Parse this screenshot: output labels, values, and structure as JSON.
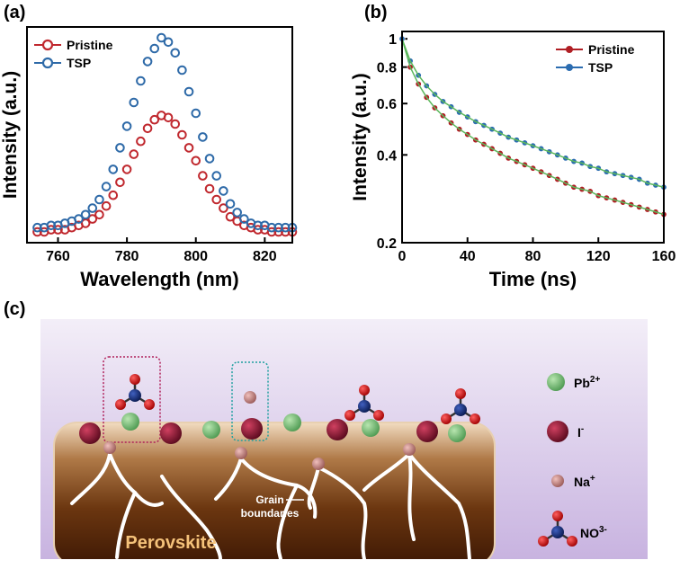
{
  "chart_data": [
    {
      "type": "scatter",
      "panel_label": "(a)",
      "xlabel": "Wavelength (nm)",
      "ylabel": "Intensity (a.u.)",
      "x": [
        754,
        756,
        758,
        760,
        762,
        764,
        766,
        768,
        770,
        772,
        774,
        776,
        778,
        780,
        782,
        784,
        786,
        788,
        790,
        792,
        794,
        796,
        798,
        800,
        802,
        804,
        806,
        808,
        810,
        812,
        814,
        816,
        818,
        820,
        822,
        824,
        826,
        828
      ],
      "series": [
        {
          "name": "Pristine",
          "color": "#c0282e",
          "values": [
            0.05,
            0.05,
            0.06,
            0.06,
            0.06,
            0.07,
            0.08,
            0.09,
            0.11,
            0.13,
            0.17,
            0.22,
            0.28,
            0.34,
            0.41,
            0.47,
            0.53,
            0.57,
            0.59,
            0.58,
            0.55,
            0.5,
            0.44,
            0.38,
            0.31,
            0.25,
            0.2,
            0.16,
            0.12,
            0.1,
            0.08,
            0.07,
            0.06,
            0.06,
            0.05,
            0.05,
            0.05,
            0.05
          ]
        },
        {
          "name": "TSP",
          "color": "#2e6aa8",
          "values": [
            0.07,
            0.07,
            0.08,
            0.08,
            0.09,
            0.1,
            0.11,
            0.13,
            0.16,
            0.2,
            0.26,
            0.34,
            0.44,
            0.54,
            0.65,
            0.75,
            0.84,
            0.9,
            0.95,
            0.93,
            0.88,
            0.8,
            0.7,
            0.6,
            0.49,
            0.39,
            0.31,
            0.24,
            0.18,
            0.14,
            0.11,
            0.09,
            0.08,
            0.08,
            0.07,
            0.07,
            0.07,
            0.07
          ]
        }
      ],
      "marker_fill": false,
      "xlim": [
        751,
        828
      ],
      "xticks": [
        760,
        780,
        800,
        820
      ],
      "ylim": [
        0,
        1
      ],
      "legend": "upper left"
    },
    {
      "type": "scatter",
      "panel_label": "(b)",
      "xlabel": "Time (ns)",
      "ylabel": "Intensity (a.u.)",
      "x": [
        0,
        5,
        10,
        15,
        20,
        25,
        30,
        35,
        40,
        45,
        50,
        55,
        60,
        65,
        70,
        75,
        80,
        85,
        90,
        95,
        100,
        105,
        110,
        115,
        120,
        125,
        130,
        135,
        140,
        145,
        150,
        155,
        160
      ],
      "series": [
        {
          "name": "Pristine",
          "color": "#b01e24",
          "values": [
            1.0,
            0.8,
            0.7,
            0.63,
            0.58,
            0.545,
            0.515,
            0.49,
            0.47,
            0.45,
            0.435,
            0.42,
            0.405,
            0.39,
            0.38,
            0.37,
            0.36,
            0.35,
            0.34,
            0.33,
            0.32,
            0.31,
            0.305,
            0.3,
            0.29,
            0.285,
            0.28,
            0.275,
            0.27,
            0.265,
            0.26,
            0.255,
            0.25
          ]
        },
        {
          "name": "TSP",
          "color": "#2b6cb0",
          "values": [
            1.0,
            0.84,
            0.75,
            0.69,
            0.645,
            0.61,
            0.585,
            0.56,
            0.54,
            0.52,
            0.505,
            0.49,
            0.475,
            0.46,
            0.45,
            0.44,
            0.43,
            0.42,
            0.41,
            0.4,
            0.39,
            0.38,
            0.375,
            0.365,
            0.36,
            0.35,
            0.345,
            0.34,
            0.335,
            0.33,
            0.32,
            0.315,
            0.31
          ]
        }
      ],
      "marker_fill": true,
      "fit_color": "#5cb85c",
      "ylog": true,
      "xlim": [
        0,
        160
      ],
      "xticks": [
        0,
        40,
        80,
        120,
        160
      ],
      "ylim": [
        0.2,
        1.06
      ],
      "yticks": [
        0.2,
        0.4,
        0.6,
        0.8,
        1
      ],
      "legend": "upper right"
    }
  ],
  "diagram": {
    "panel_label": "(c)",
    "grain_label": [
      "Grain",
      "boundaries"
    ],
    "slab_label": "Perovskite",
    "legend": [
      {
        "label": "Pb",
        "sup": "2+"
      },
      {
        "label": "I",
        "sup": "-"
      },
      {
        "label": "Na",
        "sup": "+"
      },
      {
        "label": "NO",
        "sup": "3-"
      }
    ]
  }
}
